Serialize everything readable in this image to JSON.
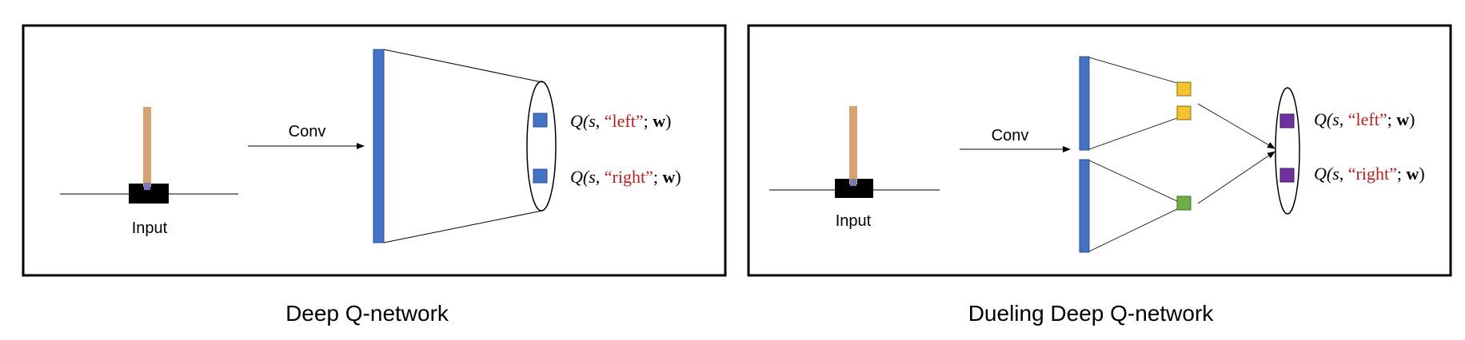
{
  "left_panel": {
    "caption": "Deep Q-network",
    "conv_label": "Conv",
    "input_label": "Input",
    "outputs": [
      {
        "prefix": "Q(",
        "s": "s",
        "sep": ", ",
        "action": "“left”",
        "suffix_sep": "; ",
        "w": "w",
        "close": ")"
      },
      {
        "prefix": "Q(",
        "s": "s",
        "sep": ", ",
        "action": "“right”",
        "suffix_sep": "; ",
        "w": "w",
        "close": ")"
      }
    ]
  },
  "right_panel": {
    "caption": "Dueling Deep Q-network",
    "conv_label": "Conv",
    "input_label": "Input",
    "outputs": [
      {
        "prefix": "Q(",
        "s": "s",
        "sep": ", ",
        "action": "“left”",
        "suffix_sep": "; ",
        "w": "w",
        "close": ")"
      },
      {
        "prefix": "Q(",
        "s": "s",
        "sep": ", ",
        "action": "“right”",
        "suffix_sep": "; ",
        "w": "w",
        "close": ")"
      }
    ]
  },
  "colors": {
    "layer_blue": "#4472C4",
    "q_blue": "#4472C4",
    "advantage_yellow": "#F4C430",
    "value_green": "#70AD47",
    "q_purple": "#7030A0",
    "pole_tan": "#D4A373",
    "cart_black": "#000000",
    "action_red": "#B22222"
  },
  "icons": [
    "cartpole-icon",
    "arrow-icon"
  ]
}
